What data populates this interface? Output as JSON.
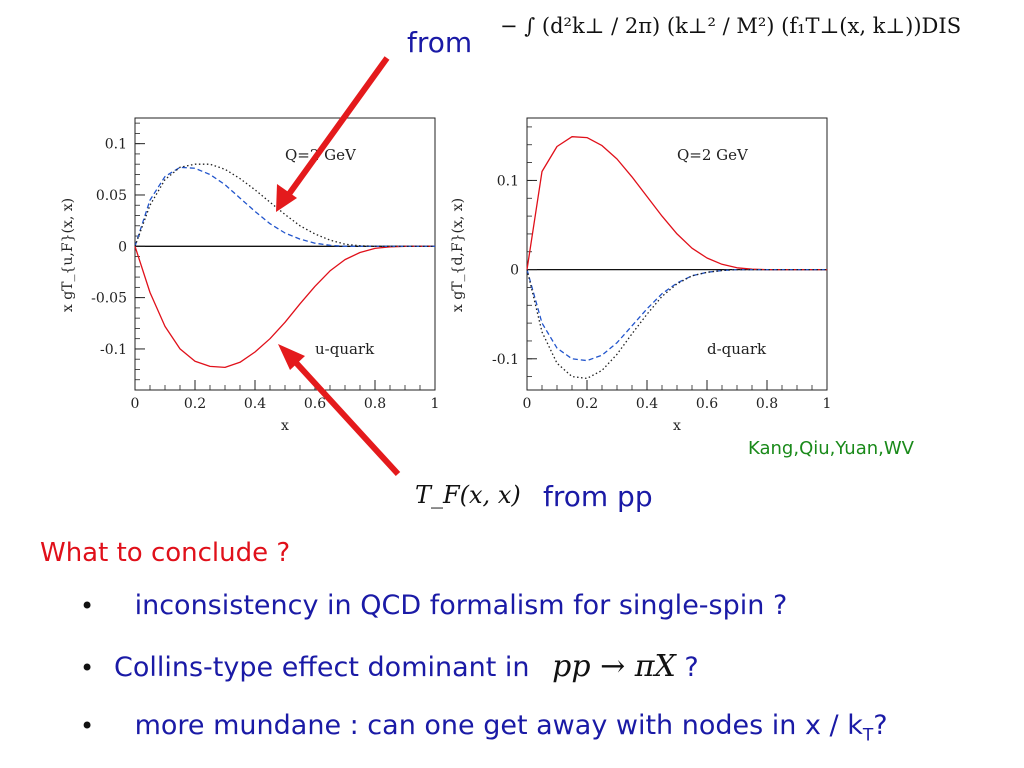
{
  "annotations": {
    "from_top": "from",
    "formula_top": "− ∫ (d²k⊥ / 2π) (k⊥² / M²) (f₁T⊥(x, k⊥))DIS",
    "tf_formula": "T_F(x, x)",
    "from_pp": "from pp",
    "credit": "Kang,Qiu,Yuan,WV"
  },
  "conclusion": {
    "heading": "What to conclude ?",
    "bullets": [
      {
        "text": "inconsistency in QCD formalism for single-spin ?"
      },
      {
        "text": "Collins-type effect dominant in",
        "math": "pp → πX",
        "suffix": " ?"
      },
      {
        "text": "more mundane : can one get away with nodes in x / k",
        "sub": "T",
        "suffix": "?"
      }
    ]
  },
  "chart_data": [
    {
      "type": "line",
      "title": "",
      "annotation_top": "Q=2 GeV",
      "annotation_bottom": "u-quark",
      "xlabel": "x",
      "ylabel": "x gT_{u,F}(x, x)",
      "xlim": [
        0,
        1
      ],
      "ylim": [
        -0.14,
        0.125
      ],
      "yticks": [
        0.1,
        0.05,
        0,
        -0.05,
        -0.1
      ],
      "ytick_labels": [
        "0.1",
        "0.05",
        "0",
        "-0.05",
        "-0.1"
      ],
      "xticks": [
        0,
        0.2,
        0.4,
        0.6,
        0.8,
        1
      ],
      "xtick_labels": [
        "0",
        "0.2",
        "0.4",
        "0.6",
        "0.8",
        "1"
      ],
      "x": [
        0,
        0.05,
        0.1,
        0.15,
        0.2,
        0.25,
        0.3,
        0.35,
        0.4,
        0.45,
        0.5,
        0.55,
        0.6,
        0.65,
        0.7,
        0.75,
        0.8,
        0.85,
        0.9,
        0.95,
        1.0
      ],
      "series": [
        {
          "name": "",
          "style": "solid",
          "color": "#e0101a",
          "values": [
            0,
            -0.045,
            -0.078,
            -0.1,
            -0.112,
            -0.117,
            -0.118,
            -0.113,
            -0.103,
            -0.09,
            -0.074,
            -0.056,
            -0.039,
            -0.024,
            -0.013,
            -0.006,
            -0.002,
            -0.0005,
            0,
            0,
            0
          ]
        },
        {
          "name": "",
          "style": "dashed",
          "color": "#2255cc",
          "values": [
            0,
            0.045,
            0.068,
            0.077,
            0.076,
            0.07,
            0.06,
            0.047,
            0.034,
            0.022,
            0.013,
            0.007,
            0.003,
            0.001,
            0,
            0,
            0,
            0,
            0,
            0,
            0
          ]
        },
        {
          "name": "",
          "style": "dotted",
          "color": "#222222",
          "values": [
            0,
            0.04,
            0.065,
            0.077,
            0.08,
            0.08,
            0.075,
            0.066,
            0.055,
            0.043,
            0.031,
            0.02,
            0.012,
            0.006,
            0.002,
            0.0005,
            0,
            0,
            0,
            0,
            0
          ]
        }
      ]
    },
    {
      "type": "line",
      "title": "",
      "annotation_top": "Q=2 GeV",
      "annotation_bottom": "d-quark",
      "xlabel": "x",
      "ylabel": "x gT_{d,F}(x, x)",
      "xlim": [
        0,
        1
      ],
      "ylim": [
        -0.135,
        0.17
      ],
      "yticks": [
        0.1,
        0,
        -0.1
      ],
      "ytick_labels": [
        "0.1",
        "0",
        "-0.1"
      ],
      "xticks": [
        0,
        0.2,
        0.4,
        0.6,
        0.8,
        1
      ],
      "xtick_labels": [
        "0",
        "0.2",
        "0.4",
        "0.6",
        "0.8",
        "1"
      ],
      "x": [
        0,
        0.05,
        0.1,
        0.15,
        0.2,
        0.25,
        0.3,
        0.35,
        0.4,
        0.45,
        0.5,
        0.55,
        0.6,
        0.65,
        0.7,
        0.75,
        0.8,
        0.85,
        0.9,
        0.95,
        1.0
      ],
      "series": [
        {
          "name": "",
          "style": "solid",
          "color": "#e0101a",
          "values": [
            0,
            0.11,
            0.138,
            0.149,
            0.148,
            0.139,
            0.124,
            0.104,
            0.082,
            0.06,
            0.04,
            0.024,
            0.013,
            0.006,
            0.002,
            0.0005,
            0,
            0,
            0,
            0,
            0
          ]
        },
        {
          "name": "",
          "style": "dashed",
          "color": "#2255cc",
          "values": [
            0,
            -0.06,
            -0.088,
            -0.1,
            -0.102,
            -0.096,
            -0.082,
            -0.063,
            -0.044,
            -0.027,
            -0.015,
            -0.007,
            -0.003,
            -0.001,
            0,
            0,
            0,
            0,
            0,
            0,
            0
          ]
        },
        {
          "name": "",
          "style": "dotted",
          "color": "#222222",
          "values": [
            0,
            -0.07,
            -0.105,
            -0.12,
            -0.122,
            -0.113,
            -0.095,
            -0.072,
            -0.05,
            -0.03,
            -0.016,
            -0.007,
            -0.003,
            -0.001,
            0,
            0,
            0,
            0,
            0,
            0,
            0
          ]
        }
      ]
    }
  ]
}
